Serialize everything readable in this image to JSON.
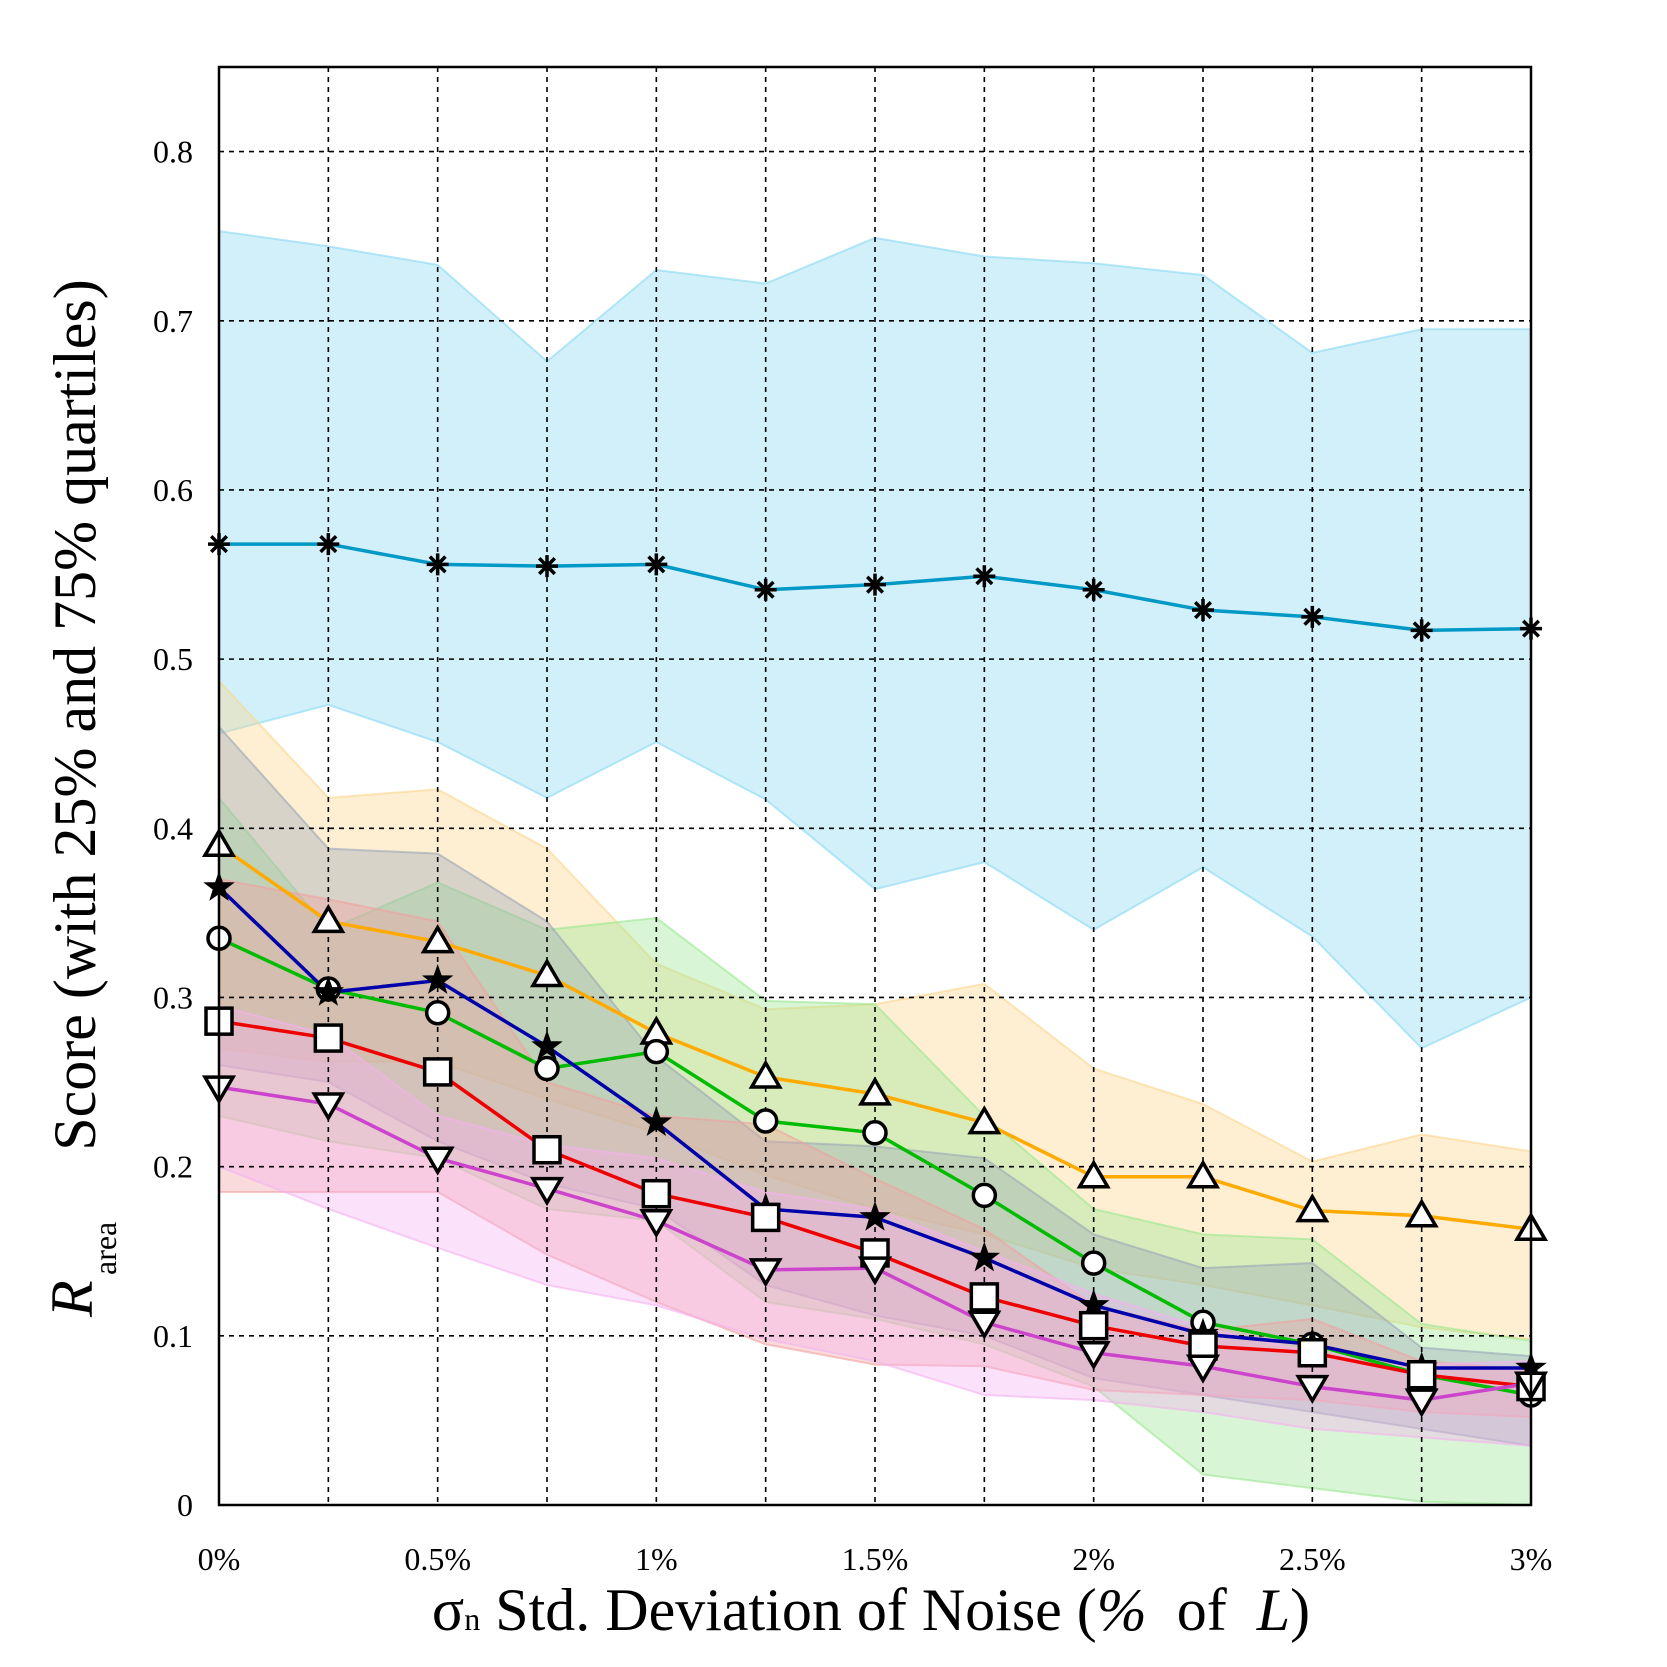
{
  "chart_data": {
    "type": "line",
    "x": [
      0,
      0.25,
      0.5,
      0.75,
      1,
      1.25,
      1.5,
      1.75,
      2,
      2.25,
      2.5,
      2.75,
      3
    ],
    "xticks": [
      0,
      0.5,
      1,
      1.5,
      2,
      2.5,
      3
    ],
    "xtick_labels": [
      "0%",
      "0.5%",
      "1%",
      "1.5%",
      "2%",
      "2.5%",
      "3%"
    ],
    "yticks": [
      0,
      0.1,
      0.2,
      0.3,
      0.4,
      0.5,
      0.6,
      0.7,
      0.8
    ],
    "ytick_labels": [
      "0",
      "0.1",
      "0.2",
      "0.3",
      "0.4",
      "0.5",
      "0.6",
      "0.7",
      "0.8"
    ],
    "xlim": [
      0,
      3
    ],
    "ylim": [
      0,
      0.85
    ],
    "grid": true,
    "xlabel_parts": [
      "σ",
      "n",
      " Std. Deviation of Noise (",
      "%",
      "  of  ",
      "L",
      ")"
    ],
    "ylabel_main": "Score (with 25% and 75% quartiles)",
    "ylabel_symbol": "R",
    "ylabel_subscript": "area",
    "series": [
      {
        "color": "#0099c6",
        "band_color": "#87d8f3",
        "marker": "asterisk",
        "values": [
          0.568,
          0.568,
          0.556,
          0.555,
          0.556,
          0.541,
          0.544,
          0.549,
          0.541,
          0.529,
          0.525,
          0.517,
          0.518
        ],
        "q25": [
          0.456,
          0.473,
          0.451,
          0.418,
          0.451,
          0.417,
          0.364,
          0.38,
          0.34,
          0.377,
          0.336,
          0.27,
          0.3
        ],
        "q75": [
          0.753,
          0.744,
          0.733,
          0.676,
          0.73,
          0.722,
          0.749,
          0.738,
          0.734,
          0.727,
          0.681,
          0.695,
          0.695
        ]
      },
      {
        "color": "#ffaa00",
        "band_color": "#fcd58c",
        "marker": "triangle-up",
        "values": [
          0.39,
          0.345,
          0.333,
          0.313,
          0.279,
          0.253,
          0.243,
          0.226,
          0.194,
          0.194,
          0.174,
          0.171,
          0.163
        ],
        "q25": [
          0.27,
          0.262,
          0.262,
          0.24,
          0.22,
          0.195,
          0.175,
          0.16,
          0.14,
          0.13,
          0.118,
          0.105,
          0.098
        ],
        "q75": [
          0.487,
          0.418,
          0.423,
          0.388,
          0.32,
          0.293,
          0.296,
          0.308,
          0.258,
          0.237,
          0.203,
          0.219,
          0.209
        ]
      },
      {
        "color": "#00bb00",
        "band_color": "#99e890",
        "marker": "circle",
        "values": [
          0.335,
          0.305,
          0.291,
          0.258,
          0.268,
          0.227,
          0.22,
          0.183,
          0.143,
          0.108,
          0.095,
          0.077,
          0.065
        ],
        "q25": [
          0.23,
          0.215,
          0.205,
          0.175,
          0.168,
          0.12,
          0.11,
          0.095,
          0.07,
          0.018,
          0.01,
          0.002,
          0.0
        ],
        "q75": [
          0.418,
          0.34,
          0.368,
          0.34,
          0.347,
          0.298,
          0.296,
          0.23,
          0.175,
          0.16,
          0.157,
          0.107,
          0.097
        ]
      },
      {
        "color": "#0000aa",
        "band_color": "#9aa6b8",
        "marker": "star",
        "values": [
          0.365,
          0.303,
          0.31,
          0.271,
          0.226,
          0.175,
          0.17,
          0.146,
          0.118,
          0.101,
          0.095,
          0.081,
          0.081
        ],
        "q25": [
          0.26,
          0.25,
          0.215,
          0.19,
          0.175,
          0.13,
          0.112,
          0.1,
          0.075,
          0.065,
          0.055,
          0.045,
          0.035
        ],
        "q75": [
          0.46,
          0.388,
          0.385,
          0.345,
          0.265,
          0.215,
          0.212,
          0.205,
          0.16,
          0.14,
          0.143,
          0.093,
          0.088
        ]
      },
      {
        "color": "#ee0000",
        "band_color": "#f2a0a0",
        "marker": "square",
        "values": [
          0.286,
          0.276,
          0.256,
          0.21,
          0.184,
          0.17,
          0.149,
          0.123,
          0.106,
          0.094,
          0.09,
          0.077,
          0.07
        ],
        "q25": [
          0.185,
          0.185,
          0.185,
          0.148,
          0.12,
          0.095,
          0.083,
          0.082,
          0.068,
          0.065,
          0.062,
          0.055,
          0.052
        ],
        "q75": [
          0.37,
          0.358,
          0.345,
          0.25,
          0.23,
          0.225,
          0.193,
          0.163,
          0.118,
          0.103,
          0.11,
          0.085,
          0.08
        ]
      },
      {
        "color": "#cc44cc",
        "band_color": "#f5b0f0",
        "marker": "triangle-down",
        "values": [
          0.247,
          0.237,
          0.205,
          0.187,
          0.168,
          0.139,
          0.14,
          0.108,
          0.09,
          0.082,
          0.07,
          0.062,
          0.072
        ],
        "q25": [
          0.2,
          0.175,
          0.152,
          0.13,
          0.118,
          0.098,
          0.085,
          0.065,
          0.062,
          0.055,
          0.045,
          0.04,
          0.035
        ],
        "q75": [
          0.295,
          0.278,
          0.23,
          0.213,
          0.205,
          0.185,
          0.175,
          0.15,
          0.125,
          0.105,
          0.09,
          0.083,
          0.085
        ]
      }
    ]
  }
}
